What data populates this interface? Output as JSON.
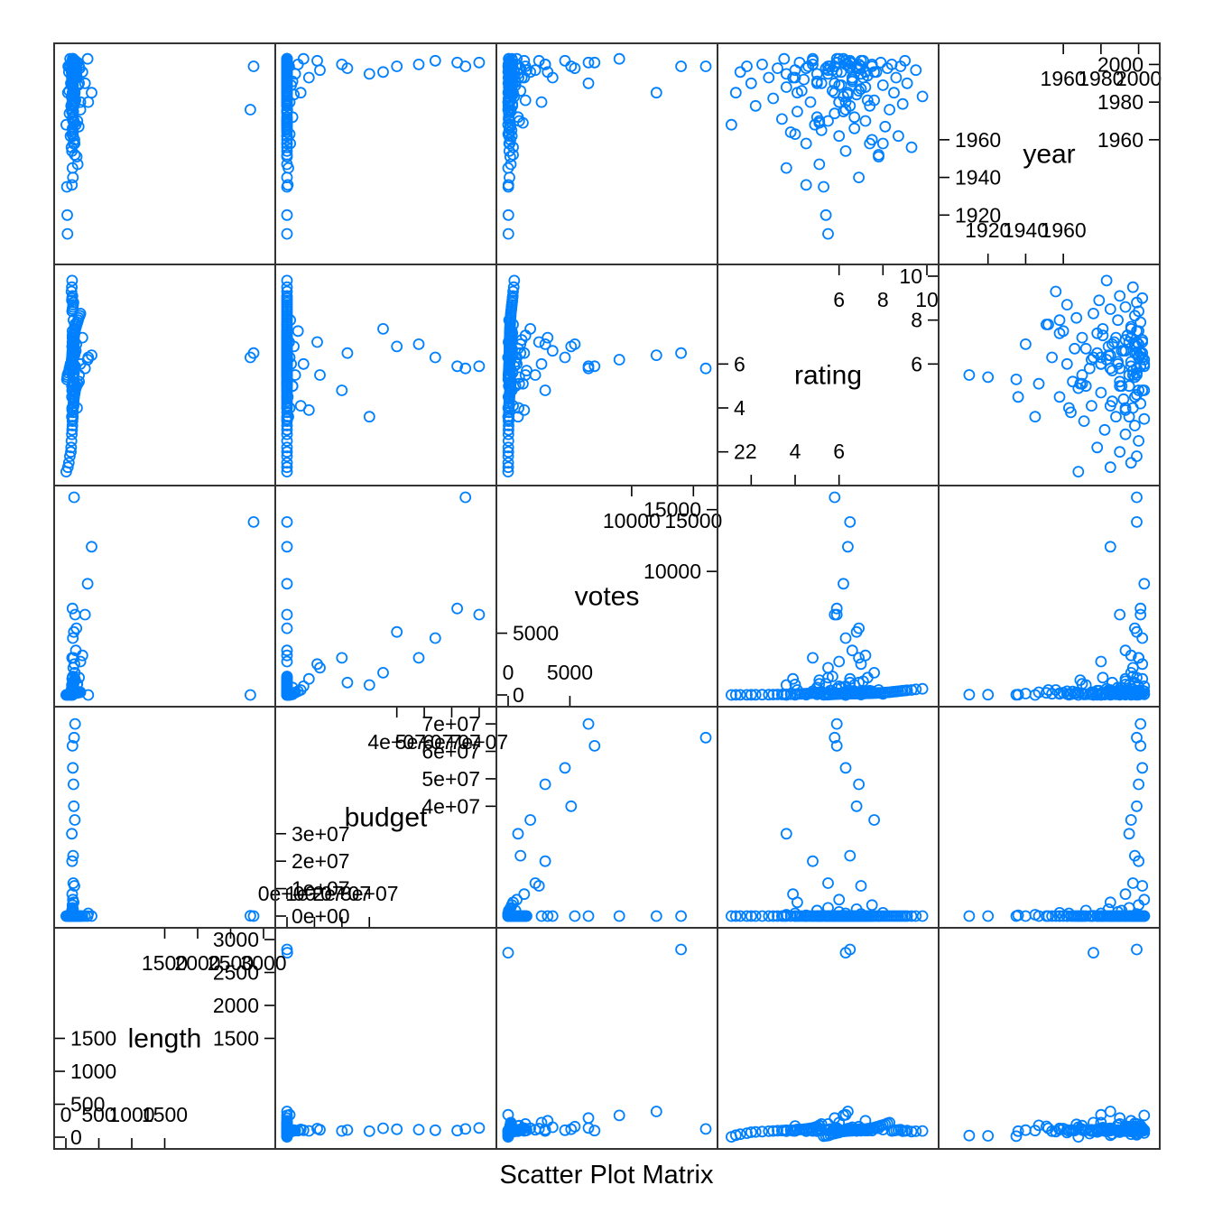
{
  "chart_data": {
    "type": "scatter",
    "subtype": "scatter-plot-matrix",
    "xlabel": "Scatter Plot Matrix",
    "point_color": "#0080ff",
    "variables": [
      {
        "name": "length",
        "range": [
          0,
          3000
        ],
        "ticks_a": [
          {
            "v": 1500,
            "t": "1500"
          },
          {
            "v": 2000,
            "t": "2000"
          },
          {
            "v": 2500,
            "t": "2500"
          },
          {
            "v": 3000,
            "t": "3000"
          }
        ],
        "ticks_b": [
          {
            "v": 0,
            "t": "0"
          },
          {
            "v": 500,
            "t": "500"
          },
          {
            "v": 1000,
            "t": "1000"
          },
          {
            "v": 1500,
            "t": "1500"
          }
        ]
      },
      {
        "name": "budget",
        "range": [
          0,
          72000000
        ],
        "ticks_a": [
          {
            "v": 40000000,
            "t": "4e+07"
          },
          {
            "v": 50000000,
            "t": "5e+07"
          },
          {
            "v": 60000000,
            "t": "6e+07"
          },
          {
            "v": 70000000,
            "t": "7e+07"
          }
        ],
        "ticks_b": [
          {
            "v": 0,
            "t": "0e+00"
          },
          {
            "v": 10000000,
            "t": "1e+07"
          },
          {
            "v": 20000000,
            "t": "2e+07"
          },
          {
            "v": 30000000,
            "t": "3e+07"
          }
        ]
      },
      {
        "name": "votes",
        "range": [
          0,
          16000
        ],
        "ticks_a": [
          {
            "v": 10000,
            "t": "10000"
          },
          {
            "v": 15000,
            "t": "15000"
          }
        ],
        "ticks_b": [
          {
            "v": 0,
            "t": "0"
          },
          {
            "v": 5000,
            "t": "5000"
          }
        ]
      },
      {
        "name": "rating",
        "range": [
          1,
          10
        ],
        "ticks_a": [
          {
            "v": 6,
            "t": "6"
          },
          {
            "v": 8,
            "t": "8"
          },
          {
            "v": 10,
            "t": "10"
          }
        ],
        "ticks_b": [
          {
            "v": 2,
            "t": "2"
          },
          {
            "v": 4,
            "t": "4"
          },
          {
            "v": 6,
            "t": "6"
          }
        ]
      },
      {
        "name": "year",
        "range": [
          1900,
          2005
        ],
        "ticks_a": [
          {
            "v": 1960,
            "t": "1960"
          },
          {
            "v": 1980,
            "t": "1980"
          },
          {
            "v": 2000,
            "t": "2000"
          }
        ],
        "ticks_b": [
          {
            "v": 1920,
            "t": "1920"
          },
          {
            "v": 1940,
            "t": "1940"
          },
          {
            "v": 1960,
            "t": "1960"
          }
        ]
      }
    ],
    "points": [
      [
        5,
        0,
        0,
        1.1,
        1968
      ],
      [
        30,
        0,
        5,
        1.3,
        1985
      ],
      [
        45,
        0,
        8,
        1.5,
        1996
      ],
      [
        60,
        0,
        10,
        1.8,
        1999
      ],
      [
        75,
        0,
        12,
        2.0,
        1990
      ],
      [
        80,
        0,
        15,
        2.2,
        1978
      ],
      [
        85,
        0,
        20,
        2.5,
        2000
      ],
      [
        90,
        0,
        25,
        2.8,
        1993
      ],
      [
        95,
        0,
        30,
        3.0,
        1982
      ],
      [
        98,
        0,
        35,
        3.2,
        1998
      ],
      [
        100,
        0,
        40,
        3.4,
        1971
      ],
      [
        102,
        0,
        45,
        3.5,
        2003
      ],
      [
        105,
        0,
        50,
        3.6,
        1988
      ],
      [
        108,
        0,
        55,
        3.8,
        1964
      ],
      [
        110,
        0,
        60,
        4.0,
        1997
      ],
      [
        112,
        0,
        70,
        4.1,
        1975
      ],
      [
        115,
        0,
        80,
        4.2,
        2001
      ],
      [
        118,
        0,
        90,
        4.3,
        1986
      ],
      [
        120,
        0,
        100,
        4.4,
        1992
      ],
      [
        125,
        0,
        110,
        4.5,
        1958
      ],
      [
        130,
        0,
        120,
        4.6,
        1999
      ],
      [
        135,
        0,
        130,
        4.7,
        1980
      ],
      [
        140,
        0,
        150,
        4.8,
        2002
      ],
      [
        150,
        0,
        170,
        4.9,
        1968
      ],
      [
        160,
        0,
        190,
        5.0,
        1995
      ],
      [
        180,
        0,
        220,
        5.1,
        1947
      ],
      [
        200,
        0,
        250,
        5.2,
        1990
      ],
      [
        15,
        0,
        15,
        5.3,
        1935
      ],
      [
        20,
        0,
        20,
        5.4,
        1920
      ],
      [
        25,
        0,
        25,
        5.5,
        1910
      ],
      [
        35,
        0,
        35,
        5.6,
        1999
      ],
      [
        50,
        0,
        50,
        5.7,
        1986
      ],
      [
        55,
        0,
        55,
        5.8,
        1974
      ],
      [
        65,
        0,
        65,
        5.9,
        2003
      ],
      [
        70,
        0,
        70,
        6.0,
        1962
      ],
      [
        86,
        0,
        86,
        6.1,
        1996
      ],
      [
        88,
        0,
        88,
        6.2,
        1983
      ],
      [
        92,
        0,
        92,
        6.3,
        1954
      ],
      [
        94,
        0,
        94,
        6.4,
        2000
      ],
      [
        96,
        0,
        96,
        6.5,
        1978
      ],
      [
        99,
        0,
        99,
        6.6,
        1991
      ],
      [
        101,
        0,
        101,
        6.7,
        1966
      ],
      [
        104,
        0,
        104,
        6.8,
        1998
      ],
      [
        107,
        0,
        107,
        6.9,
        1940
      ],
      [
        113,
        0,
        113,
        7.0,
        1987
      ],
      [
        117,
        0,
        117,
        7.1,
        2002
      ],
      [
        122,
        0,
        122,
        7.2,
        1970
      ],
      [
        128,
        0,
        128,
        7.3,
        1994
      ],
      [
        133,
        0,
        133,
        7.4,
        1958
      ],
      [
        138,
        0,
        138,
        7.5,
        1999
      ],
      [
        145,
        0,
        145,
        7.6,
        1981
      ],
      [
        155,
        0,
        155,
        7.7,
        1996
      ],
      [
        165,
        0,
        165,
        7.8,
        1951
      ],
      [
        175,
        0,
        175,
        7.9,
        2001
      ],
      [
        185,
        0,
        185,
        8.0,
        1989
      ],
      [
        195,
        0,
        195,
        8.1,
        1967
      ],
      [
        210,
        0,
        210,
        8.2,
        1998
      ],
      [
        220,
        0,
        220,
        8.3,
        1976
      ],
      [
        95,
        0,
        240,
        8.4,
        2000
      ],
      [
        100,
        0,
        260,
        8.5,
        1985
      ],
      [
        105,
        0,
        280,
        8.6,
        1993
      ],
      [
        110,
        0,
        300,
        8.7,
        1962
      ],
      [
        115,
        0,
        320,
        8.8,
        1999
      ],
      [
        90,
        0,
        340,
        8.9,
        1979
      ],
      [
        95,
        0,
        360,
        9.0,
        2002
      ],
      [
        100,
        0,
        380,
        9.1,
        1990
      ],
      [
        85,
        0,
        400,
        9.3,
        1956
      ],
      [
        90,
        0,
        450,
        9.5,
        1997
      ],
      [
        95,
        0,
        500,
        9.8,
        1983
      ],
      [
        100,
        0,
        60,
        4.5,
        1998
      ],
      [
        105,
        0,
        80,
        5.0,
        1990
      ],
      [
        110,
        0,
        100,
        5.5,
        1970
      ],
      [
        115,
        0,
        120,
        6.0,
        1980
      ],
      [
        120,
        0,
        140,
        6.5,
        2001
      ],
      [
        125,
        0,
        160,
        7.0,
        1995
      ],
      [
        130,
        0,
        180,
        7.5,
        1960
      ],
      [
        135,
        0,
        200,
        5.8,
        1985
      ],
      [
        90,
        0,
        220,
        6.2,
        1975
      ],
      [
        95,
        0,
        240,
        6.8,
        1999
      ],
      [
        100,
        0,
        260,
        7.2,
        1988
      ],
      [
        105,
        0,
        280,
        5.2,
        1965
      ],
      [
        110,
        0,
        300,
        4.8,
        2003
      ],
      [
        115,
        0,
        320,
        6.6,
        1992
      ],
      [
        120,
        0,
        340,
        7.4,
        1978
      ],
      [
        125,
        0,
        360,
        5.6,
        1999
      ],
      [
        130,
        0,
        380,
        6.4,
        1984
      ],
      [
        135,
        0,
        400,
        7.8,
        1952
      ],
      [
        95,
        0,
        500,
        5.9,
        1996
      ],
      [
        100,
        0,
        600,
        6.1,
        1989
      ],
      [
        105,
        0,
        700,
        6.3,
        2000
      ],
      [
        110,
        0,
        800,
        6.7,
        1972
      ],
      [
        115,
        0,
        900,
        5.4,
        1998
      ],
      [
        120,
        0,
        1000,
        6.9,
        1986
      ],
      [
        125,
        0,
        1100,
        7.1,
        1993
      ],
      [
        130,
        0,
        1200,
        5.1,
        1969
      ],
      [
        135,
        0,
        1300,
        6.5,
        2002
      ],
      [
        100,
        0,
        1400,
        7.3,
        1981
      ],
      [
        105,
        0,
        1500,
        5.7,
        1997
      ],
      [
        100,
        500000,
        0,
        3.6,
        1945
      ],
      [
        95,
        1000000,
        10,
        4.0,
        1963
      ],
      [
        105,
        2000000,
        50,
        5.0,
        1972
      ],
      [
        110,
        1500000,
        100,
        6.0,
        1989
      ],
      [
        98,
        800000,
        30,
        7.0,
        1999
      ],
      [
        102,
        3000000,
        200,
        5.5,
        1995
      ],
      [
        100,
        4000000,
        300,
        7.5,
        2000
      ],
      [
        108,
        2500000,
        150,
        6.8,
        1984
      ],
      [
        92,
        300000,
        20,
        4.5,
        1936
      ],
      [
        115,
        1200000,
        80,
        8.0,
        1958
      ],
      [
        90,
        30000000,
        800,
        3.6,
        1995
      ],
      [
        95,
        20000000,
        3000,
        4.8,
        2000
      ],
      [
        100,
        62000000,
        7000,
        5.9,
        2001
      ],
      [
        105,
        54000000,
        4600,
        6.3,
        2002
      ],
      [
        120,
        40000000,
        5100,
        6.8,
        1999
      ],
      [
        110,
        22000000,
        1000,
        6.5,
        1998
      ],
      [
        125,
        65000000,
        16000,
        5.8,
        1999
      ],
      [
        130,
        11000000,
        2500,
        7.0,
        2002
      ],
      [
        115,
        48000000,
        3000,
        6.9,
        2000
      ],
      [
        135,
        35000000,
        1800,
        7.6,
        1996
      ],
      [
        140,
        70000000,
        6500,
        5.9,
        2001
      ],
      [
        92,
        2000000,
        600,
        5.0,
        1991
      ],
      [
        118,
        5000000,
        400,
        4.1,
        1985
      ],
      [
        96,
        8000000,
        1300,
        3.9,
        1993
      ],
      [
        112,
        12000000,
        2200,
        5.5,
        1997
      ],
      [
        106,
        6000000,
        700,
        6.0,
        2003
      ],
      [
        2800,
        100000,
        0,
        6.3,
        1976
      ],
      [
        340,
        1000000,
        0,
        6.3,
        1980
      ],
      [
        2850,
        0,
        14000,
        6.5,
        1999
      ],
      [
        390,
        0,
        12000,
        6.4,
        1985
      ],
      [
        330,
        0,
        9000,
        6.2,
        2003
      ],
      [
        290,
        0,
        6500,
        5.8,
        1990
      ],
      [
        250,
        0,
        3200,
        7.2,
        1996
      ],
      [
        220,
        0,
        2700,
        6.0,
        1980
      ],
      [
        200,
        0,
        1400,
        5.5,
        1999
      ],
      [
        175,
        0,
        900,
        5.1,
        1970
      ],
      [
        170,
        0,
        850,
        4.0,
        1993
      ],
      [
        160,
        0,
        5400,
        6.9,
        1998
      ],
      [
        150,
        0,
        3600,
        6.6,
        1993
      ]
    ]
  }
}
